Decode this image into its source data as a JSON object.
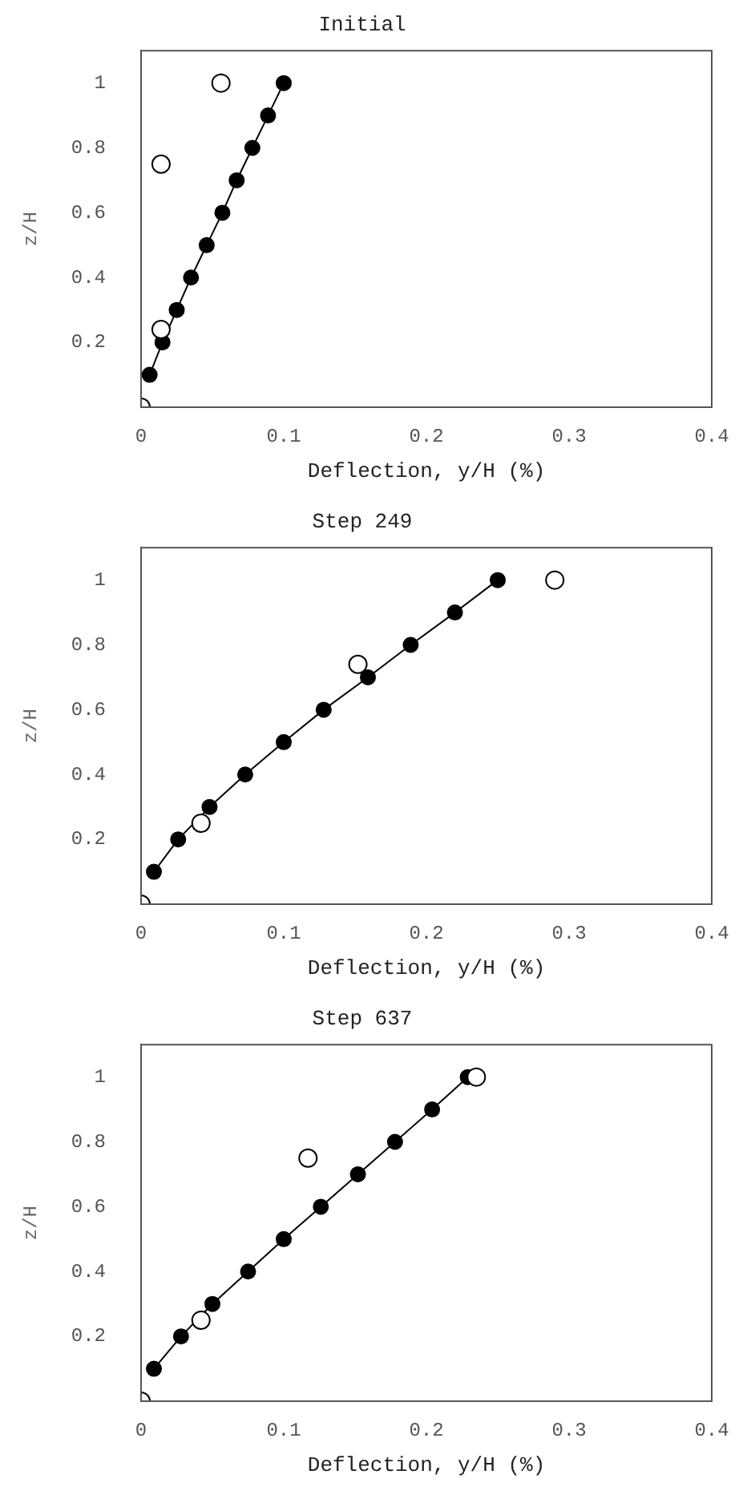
{
  "chart_data": [
    {
      "type": "line",
      "title": "Initial",
      "xlabel": "Deflection, y/H (%)",
      "ylabel": "z/H",
      "xlim": [
        0,
        0.4
      ],
      "ylim": [
        0,
        1.1
      ],
      "xticks": [
        0,
        0.1,
        0.2,
        0.3,
        0.4
      ],
      "yticks": [
        0.2,
        0.4,
        0.6,
        0.8,
        1
      ],
      "grid": false,
      "legend": false,
      "series": [
        {
          "marker": "circle",
          "color": "#000000",
          "x": [
            0.006,
            0.015,
            0.025,
            0.035,
            0.046,
            0.057,
            0.067,
            0.078,
            0.089,
            0.1
          ],
          "values": [
            0.1,
            0.2,
            0.3,
            0.4,
            0.5,
            0.6,
            0.7,
            0.8,
            0.9,
            1.0
          ]
        },
        {
          "type": "scatter",
          "marker": "circle",
          "color": "#ffffff",
          "x": [
            0,
            0.014,
            0.014,
            0.056
          ],
          "values": [
            0,
            0.24,
            0.75,
            1.0
          ]
        }
      ]
    },
    {
      "type": "line",
      "title": "Step 249",
      "xlabel": "Deflection, y/H (%)",
      "ylabel": "z/H",
      "xlim": [
        0,
        0.4
      ],
      "ylim": [
        0,
        1.1
      ],
      "xticks": [
        0,
        0.1,
        0.2,
        0.3,
        0.4
      ],
      "yticks": [
        0.2,
        0.4,
        0.6,
        0.8,
        1
      ],
      "grid": false,
      "legend": false,
      "series": [
        {
          "marker": "circle",
          "color": "#000000",
          "x": [
            0.009,
            0.026,
            0.048,
            0.073,
            0.1,
            0.128,
            0.159,
            0.189,
            0.22,
            0.25
          ],
          "values": [
            0.1,
            0.2,
            0.3,
            0.4,
            0.5,
            0.6,
            0.7,
            0.8,
            0.9,
            1.0
          ]
        },
        {
          "type": "scatter",
          "marker": "circle",
          "color": "#ffffff",
          "x": [
            0,
            0.042,
            0.152,
            0.29
          ],
          "values": [
            0,
            0.25,
            0.74,
            1.0
          ]
        }
      ]
    },
    {
      "type": "line",
      "title": "Step 637",
      "xlabel": "Deflection, y/H (%)",
      "ylabel": "z/H",
      "xlim": [
        0,
        0.4
      ],
      "ylim": [
        0,
        1.1
      ],
      "xticks": [
        0,
        0.1,
        0.2,
        0.3,
        0.4
      ],
      "yticks": [
        0.2,
        0.4,
        0.6,
        0.8,
        1
      ],
      "grid": false,
      "legend": false,
      "series": [
        {
          "marker": "circle",
          "color": "#000000",
          "x": [
            0.009,
            0.028,
            0.05,
            0.075,
            0.1,
            0.126,
            0.152,
            0.178,
            0.204,
            0.229
          ],
          "values": [
            0.1,
            0.2,
            0.3,
            0.4,
            0.5,
            0.6,
            0.7,
            0.8,
            0.9,
            1.0
          ]
        },
        {
          "type": "scatter",
          "marker": "circle",
          "color": "#ffffff",
          "x": [
            0,
            0.042,
            0.117,
            0.235
          ],
          "values": [
            0,
            0.25,
            0.75,
            1.0
          ]
        }
      ]
    }
  ]
}
